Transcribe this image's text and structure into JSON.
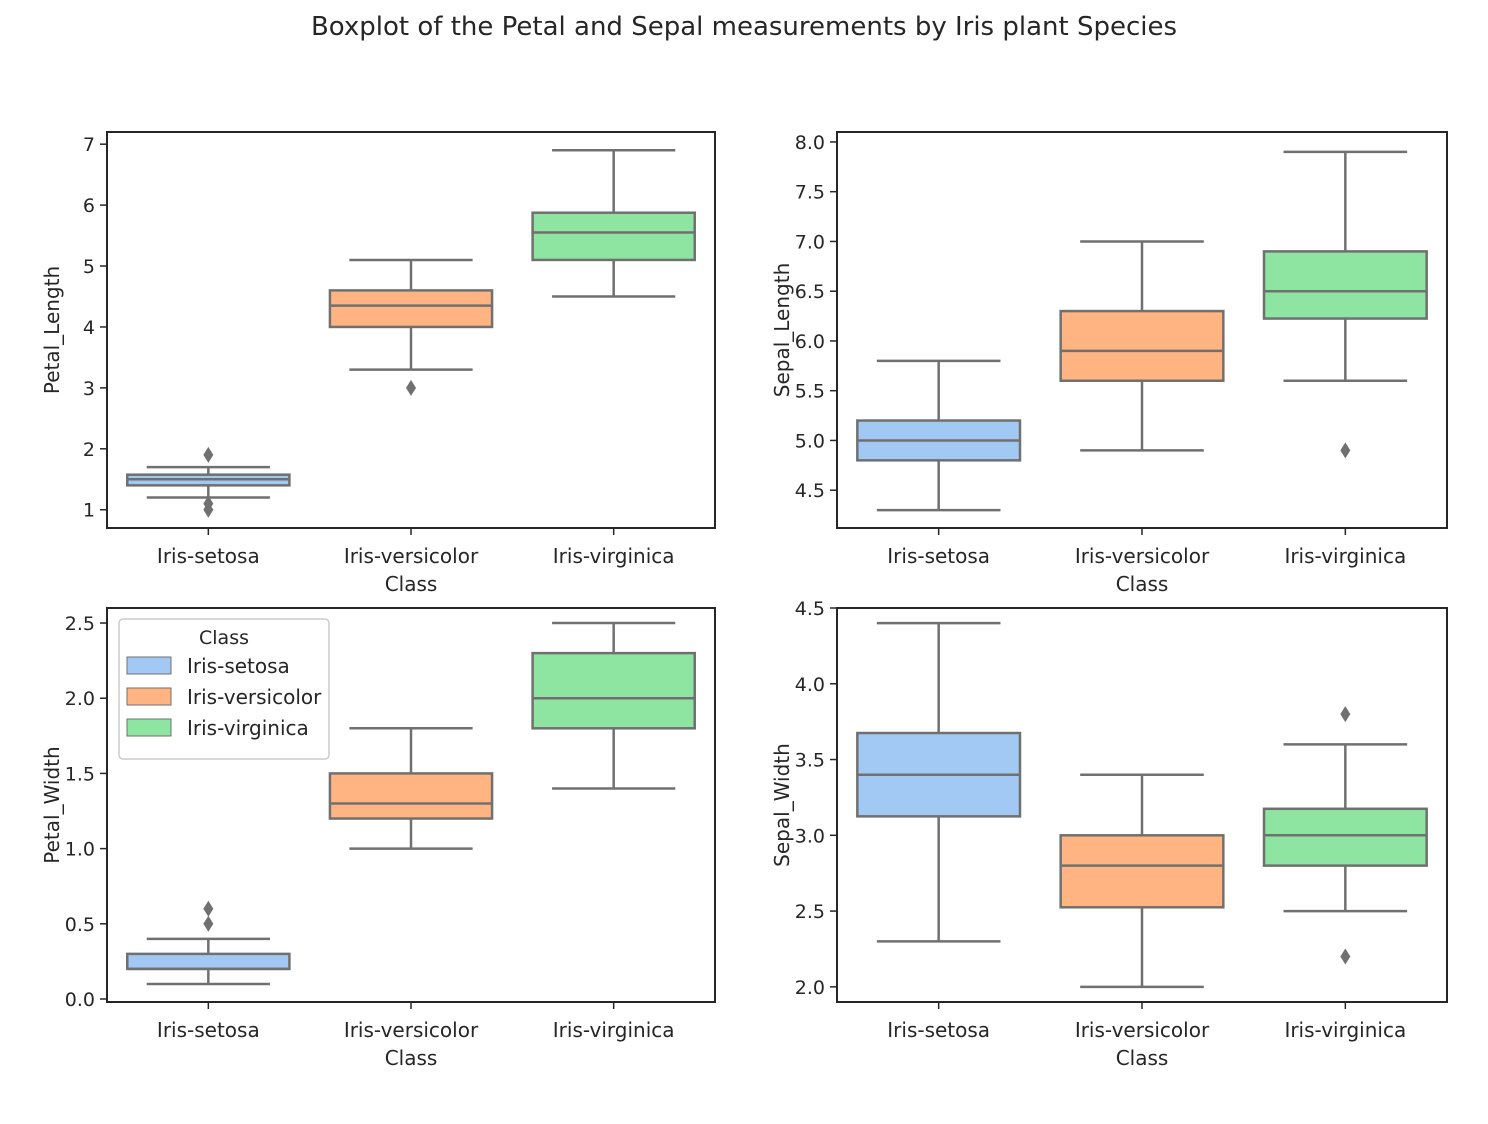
{
  "figure": {
    "title": "Boxplot of the Petal and Sepal measurements by Iris plant Species"
  },
  "chart_data": [
    {
      "type": "box",
      "xlabel": "Class",
      "ylabel": "Petal_Length",
      "ylim": [
        0.7,
        7.2
      ],
      "yticks": [
        "1",
        "2",
        "3",
        "4",
        "5",
        "6",
        "7"
      ],
      "ytick_values": [
        1,
        2,
        3,
        4,
        5,
        6,
        7
      ],
      "categories": [
        "Iris-setosa",
        "Iris-versicolor",
        "Iris-virginica"
      ],
      "boxes": [
        {
          "category": "Iris-setosa",
          "whisker_low": 1.2,
          "q1": 1.4,
          "median": 1.5,
          "q3": 1.575,
          "whisker_high": 1.7,
          "outliers": [
            1.0,
            1.1,
            1.9
          ]
        },
        {
          "category": "Iris-versicolor",
          "whisker_low": 3.3,
          "q1": 4.0,
          "median": 4.35,
          "q3": 4.6,
          "whisker_high": 5.1,
          "outliers": [
            3.0
          ]
        },
        {
          "category": "Iris-virginica",
          "whisker_low": 4.5,
          "q1": 5.1,
          "median": 5.55,
          "q3": 5.875,
          "whisker_high": 6.9,
          "outliers": []
        }
      ],
      "legend": null
    },
    {
      "type": "box",
      "xlabel": "Class",
      "ylabel": "Sepal_Length",
      "ylim": [
        4.12,
        8.1
      ],
      "yticks": [
        "4.5",
        "5.0",
        "5.5",
        "6.0",
        "6.5",
        "7.0",
        "7.5",
        "8.0"
      ],
      "ytick_values": [
        4.5,
        5.0,
        5.5,
        6.0,
        6.5,
        7.0,
        7.5,
        8.0
      ],
      "categories": [
        "Iris-setosa",
        "Iris-versicolor",
        "Iris-virginica"
      ],
      "boxes": [
        {
          "category": "Iris-setosa",
          "whisker_low": 4.3,
          "q1": 4.8,
          "median": 5.0,
          "q3": 5.2,
          "whisker_high": 5.8,
          "outliers": []
        },
        {
          "category": "Iris-versicolor",
          "whisker_low": 4.9,
          "q1": 5.6,
          "median": 5.9,
          "q3": 6.3,
          "whisker_high": 7.0,
          "outliers": []
        },
        {
          "category": "Iris-virginica",
          "whisker_low": 5.6,
          "q1": 6.225,
          "median": 6.5,
          "q3": 6.9,
          "whisker_high": 7.9,
          "outliers": [
            4.9
          ]
        }
      ],
      "legend": null
    },
    {
      "type": "box",
      "xlabel": "Class",
      "ylabel": "Petal_Width",
      "ylim": [
        -0.02,
        2.6
      ],
      "yticks": [
        "0.0",
        "0.5",
        "1.0",
        "1.5",
        "2.0",
        "2.5"
      ],
      "ytick_values": [
        0.0,
        0.5,
        1.0,
        1.5,
        2.0,
        2.5
      ],
      "categories": [
        "Iris-setosa",
        "Iris-versicolor",
        "Iris-virginica"
      ],
      "boxes": [
        {
          "category": "Iris-setosa",
          "whisker_low": 0.1,
          "q1": 0.2,
          "median": 0.2,
          "q3": 0.3,
          "whisker_high": 0.4,
          "outliers": [
            0.5,
            0.6
          ]
        },
        {
          "category": "Iris-versicolor",
          "whisker_low": 1.0,
          "q1": 1.2,
          "median": 1.3,
          "q3": 1.5,
          "whisker_high": 1.8,
          "outliers": []
        },
        {
          "category": "Iris-virginica",
          "whisker_low": 1.4,
          "q1": 1.8,
          "median": 2.0,
          "q3": 2.3,
          "whisker_high": 2.5,
          "outliers": []
        }
      ],
      "legend": {
        "title": "Class",
        "position": "upper-left",
        "entries": [
          "Iris-setosa",
          "Iris-versicolor",
          "Iris-virginica"
        ]
      }
    },
    {
      "type": "box",
      "xlabel": "Class",
      "ylabel": "Sepal_Width",
      "ylim": [
        1.9,
        4.5
      ],
      "yticks": [
        "2.0",
        "2.5",
        "3.0",
        "3.5",
        "4.0",
        "4.5"
      ],
      "ytick_values": [
        2.0,
        2.5,
        3.0,
        3.5,
        4.0,
        4.5
      ],
      "categories": [
        "Iris-setosa",
        "Iris-versicolor",
        "Iris-virginica"
      ],
      "boxes": [
        {
          "category": "Iris-setosa",
          "whisker_low": 2.3,
          "q1": 3.125,
          "median": 3.4,
          "q3": 3.675,
          "whisker_high": 4.4,
          "outliers": []
        },
        {
          "category": "Iris-versicolor",
          "whisker_low": 2.0,
          "q1": 2.525,
          "median": 2.8,
          "q3": 3.0,
          "whisker_high": 3.4,
          "outliers": []
        },
        {
          "category": "Iris-virginica",
          "whisker_low": 2.5,
          "q1": 2.8,
          "median": 3.0,
          "q3": 3.175,
          "whisker_high": 3.6,
          "outliers": [
            2.2,
            3.8
          ]
        }
      ],
      "legend": null
    }
  ],
  "colors": {
    "Iris-setosa": "#a1c9f4",
    "Iris-versicolor": "#ffb482",
    "Iris-virginica": "#8de5a1",
    "box_edge": "#707070",
    "axes": "#262626"
  }
}
